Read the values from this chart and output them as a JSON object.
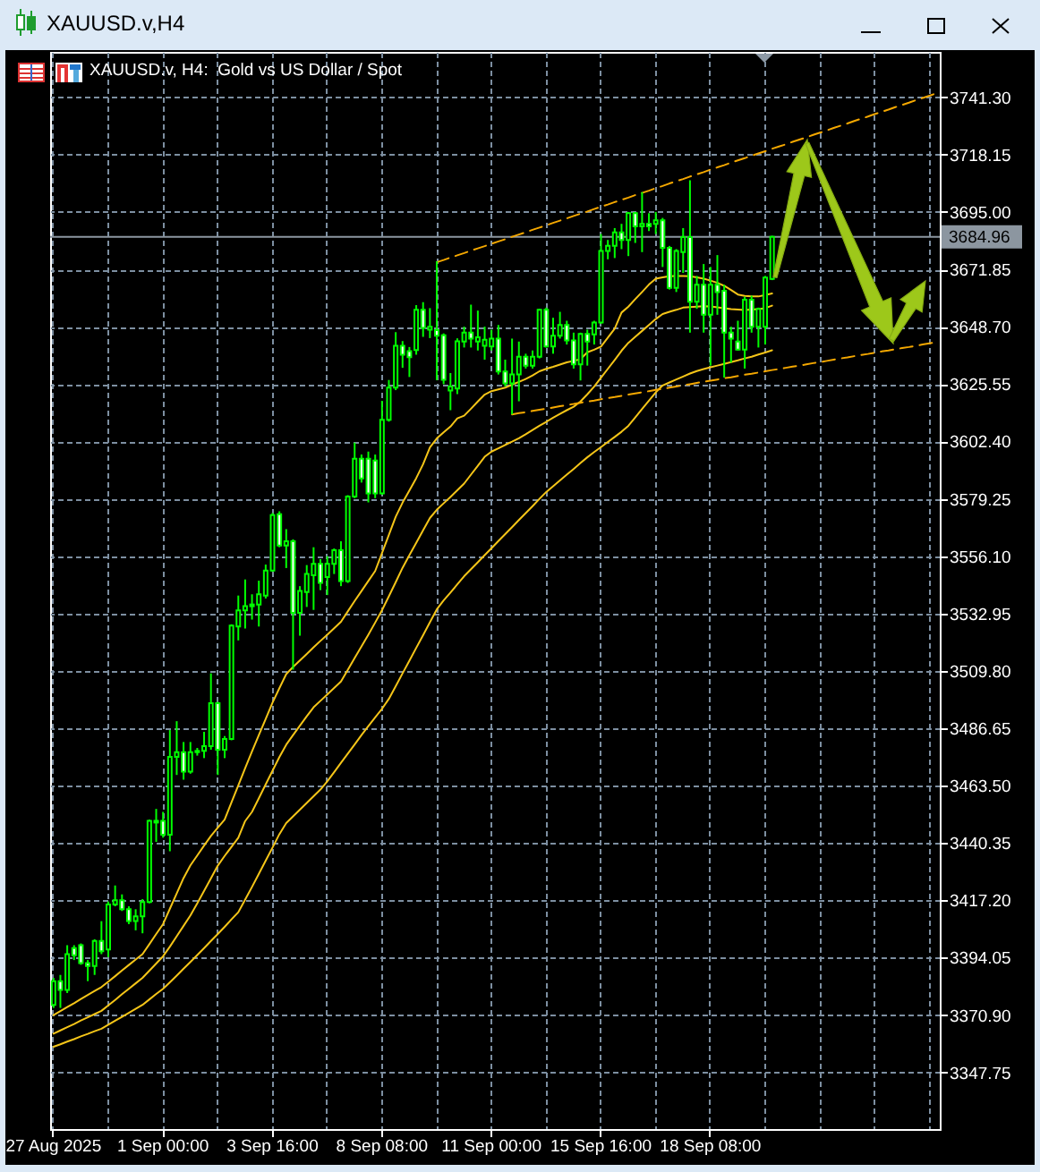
{
  "chart_data": {
    "type": "candlestick",
    "title": "XAUUSD.v,H4",
    "subtitle": "XAUUSD.v, H4:  Gold vs US Dollar / Spot",
    "color": "#00ff00",
    "categories": [
      "27 Aug 2025",
      null,
      null,
      null,
      null,
      null,
      null,
      null,
      null,
      null,
      null,
      null,
      null,
      null,
      null,
      null,
      "1 Sep 00:00",
      null,
      null,
      null,
      null,
      null,
      null,
      null,
      null,
      null,
      null,
      null,
      null,
      null,
      null,
      null,
      "3 Sep 16:00",
      null,
      null,
      null,
      null,
      null,
      null,
      null,
      null,
      null,
      null,
      null,
      null,
      null,
      null,
      null,
      "8 Sep 08:00",
      null,
      null,
      null,
      null,
      null,
      null,
      null,
      null,
      null,
      null,
      null,
      null,
      null,
      null,
      null,
      "11 Sep 00:00",
      null,
      null,
      null,
      null,
      null,
      null,
      null,
      null,
      null,
      null,
      null,
      null,
      null,
      null,
      null,
      "15 Sep 16:00",
      null,
      null,
      null,
      null,
      null,
      null,
      null,
      null,
      null,
      null,
      null,
      null,
      null,
      null,
      null,
      "18 Sep 08:00",
      null,
      null,
      null,
      null,
      null,
      null,
      null,
      null,
      null,
      null,
      null,
      null,
      null,
      null,
      null,
      null,
      null,
      null,
      null,
      null,
      null,
      null,
      null,
      null,
      null,
      null,
      null,
      null,
      null,
      null,
      null,
      null,
      null
    ],
    "ohlc": [
      [
        3375.0,
        3385.9,
        3373.8,
        3384.6
      ],
      [
        3384.6,
        3387.1,
        3373.8,
        3381.0
      ],
      [
        3381.0,
        3399.1,
        3379.8,
        3395.5
      ],
      [
        3397.9,
        3399.1,
        3393.1,
        3395.0
      ],
      [
        3399.1,
        3399.8,
        3391.2,
        3391.9
      ],
      [
        3391.9,
        3393.1,
        3384.6,
        3390.7
      ],
      [
        3390.7,
        3401.5,
        3387.1,
        3400.8
      ],
      [
        3400.8,
        3408.8,
        3395.5,
        3396.7
      ],
      [
        3397.4,
        3416.7,
        3394.3,
        3415.5
      ],
      [
        3415.5,
        3423.2,
        3414.8,
        3417.2
      ],
      [
        3417.2,
        3419.6,
        3412.9,
        3413.6
      ],
      [
        3413.6,
        3414.8,
        3407.6,
        3408.8
      ],
      [
        3408.8,
        3413.6,
        3405.1,
        3410.7
      ],
      [
        3410.7,
        3417.7,
        3403.9,
        3416.5
      ],
      [
        3416.5,
        3449.8,
        3416.0,
        3449.3
      ],
      [
        3449.3,
        3454.1,
        3440.8,
        3448.6
      ],
      [
        3449.3,
        3452.9,
        3442.5,
        3443.7
      ],
      [
        3443.7,
        3485.9,
        3437.0,
        3475.1
      ],
      [
        3475.1,
        3489.5,
        3467.8,
        3477.0
      ],
      [
        3477.0,
        3481.1,
        3465.9,
        3469.1
      ],
      [
        3469.1,
        3481.1,
        3468.3,
        3477.0
      ],
      [
        3477.0,
        3478.7,
        3475.6,
        3477.5
      ],
      [
        3477.5,
        3485.2,
        3474.6,
        3479.4
      ],
      [
        3479.4,
        3508.8,
        3478.0,
        3496.8
      ],
      [
        3496.8,
        3497.3,
        3467.8,
        3478.0
      ],
      [
        3478.0,
        3483.5,
        3474.6,
        3482.3
      ],
      [
        3482.3,
        3528.6,
        3481.8,
        3528.1
      ],
      [
        3527.7,
        3540.2,
        3522.1,
        3534.2
      ],
      [
        3534.2,
        3546.7,
        3526.9,
        3535.9
      ],
      [
        3535.9,
        3540.7,
        3530.5,
        3536.6
      ],
      [
        3536.6,
        3546.2,
        3527.7,
        3540.7
      ],
      [
        3540.2,
        3552.7,
        3539.0,
        3550.3
      ],
      [
        3550.3,
        3573.5,
        3549.8,
        3572.7
      ],
      [
        3573.0,
        3574.2,
        3559.7,
        3560.4
      ],
      [
        3560.4,
        3567.0,
        3551.3,
        3562.1
      ],
      [
        3562.1,
        3562.9,
        3510.3,
        3533.2
      ],
      [
        3533.2,
        3544.0,
        3524.0,
        3542.1
      ],
      [
        3541.6,
        3552.5,
        3535.6,
        3548.9
      ],
      [
        3548.4,
        3559.7,
        3534.4,
        3553.0
      ],
      [
        3553.0,
        3554.9,
        3542.4,
        3545.3
      ],
      [
        3547.7,
        3556.1,
        3540.4,
        3553.0
      ],
      [
        3553.0,
        3559.2,
        3548.9,
        3558.5
      ],
      [
        3558.5,
        3562.1,
        3544.0,
        3546.0
      ],
      [
        3546.0,
        3580.7,
        3545.3,
        3580.2
      ],
      [
        3580.2,
        3601.9,
        3579.5,
        3595.4
      ],
      [
        3595.4,
        3597.1,
        3585.8,
        3587.5
      ],
      [
        3595.4,
        3598.3,
        3577.8,
        3581.4
      ],
      [
        3594.7,
        3597.1,
        3579.5,
        3581.4
      ],
      [
        3581.4,
        3618.8,
        3580.9,
        3611.1
      ],
      [
        3611.1,
        3627.2,
        3610.4,
        3624.1
      ],
      [
        3624.1,
        3646.5,
        3623.1,
        3641.0
      ],
      [
        3641.0,
        3642.9,
        3632.1,
        3637.4
      ],
      [
        3638.8,
        3640.5,
        3628.4,
        3636.4
      ],
      [
        3639.3,
        3657.4,
        3637.4,
        3655.5
      ],
      [
        3655.5,
        3658.6,
        3644.6,
        3648.2
      ],
      [
        3647.5,
        3656.2,
        3644.1,
        3648.7
      ],
      [
        3647.3,
        3675.1,
        3627.1,
        3645.1
      ],
      [
        3645.2,
        3646.0,
        3625.5,
        3627.3
      ],
      [
        3622.9,
        3630.0,
        3615.0,
        3624.6
      ],
      [
        3623.8,
        3644.0,
        3621.5,
        3642.8
      ],
      [
        3642.7,
        3648.7,
        3640.3,
        3646.3
      ],
      [
        3646.3,
        3657.6,
        3640.3,
        3643.9
      ],
      [
        3642.7,
        3655.2,
        3639.1,
        3644.4
      ],
      [
        3641.0,
        3648.7,
        3635.4,
        3643.4
      ],
      [
        3640.7,
        3647.5,
        3639.1,
        3643.9
      ],
      [
        3643.9,
        3649.4,
        3629.4,
        3630.6
      ],
      [
        3630.6,
        3635.4,
        3624.6,
        3625.8
      ],
      [
        3625.8,
        3643.9,
        3613.3,
        3629.4
      ],
      [
        3629.4,
        3642.7,
        3618.6,
        3636.6
      ],
      [
        3636.6,
        3637.8,
        3631.8,
        3633.0
      ],
      [
        3633.0,
        3639.1,
        3631.8,
        3636.6
      ],
      [
        3636.6,
        3655.9,
        3635.9,
        3655.5
      ],
      [
        3655.5,
        3656.4,
        3640.3,
        3640.7
      ],
      [
        3640.7,
        3652.3,
        3637.8,
        3645.1
      ],
      [
        3645.1,
        3654.7,
        3643.9,
        3649.4
      ],
      [
        3649.4,
        3651.1,
        3641.5,
        3643.2
      ],
      [
        3643.2,
        3646.3,
        3631.8,
        3633.5
      ],
      [
        3633.5,
        3646.3,
        3627.0,
        3645.8
      ],
      [
        3645.8,
        3647.5,
        3633.0,
        3642.7
      ],
      [
        3645.6,
        3651.1,
        3641.5,
        3650.4
      ],
      [
        3650.4,
        3686.1,
        3649.9,
        3679.3
      ],
      [
        3679.3,
        3683.7,
        3675.9,
        3681.3
      ],
      [
        3681.3,
        3688.5,
        3676.4,
        3686.8
      ],
      [
        3686.8,
        3690.2,
        3680.0,
        3683.7
      ],
      [
        3683.7,
        3695.0,
        3677.2,
        3694.5
      ],
      [
        3694.5,
        3695.0,
        3682.5,
        3689.2
      ],
      [
        3689.2,
        3703.0,
        3678.8,
        3690.2
      ],
      [
        3690.2,
        3694.5,
        3687.3,
        3689.2
      ],
      [
        3690.2,
        3695.0,
        3686.1,
        3691.6
      ],
      [
        3691.6,
        3692.6,
        3672.8,
        3680.5
      ],
      [
        3680.5,
        3681.3,
        3663.7,
        3664.4
      ],
      [
        3664.4,
        3680.0,
        3662.7,
        3679.3
      ],
      [
        3678.8,
        3688.5,
        3670.4,
        3684.9
      ],
      [
        3684.9,
        3707.8,
        3646.3,
        3658.8
      ],
      [
        3658.8,
        3669.2,
        3655.9,
        3665.6
      ],
      [
        3665.6,
        3674.0,
        3646.3,
        3653.5
      ],
      [
        3653.5,
        3672.8,
        3633.0,
        3665.6
      ],
      [
        3665.6,
        3677.6,
        3653.5,
        3662.7
      ],
      [
        3663.2,
        3665.6,
        3628.2,
        3646.3
      ],
      [
        3646.3,
        3648.7,
        3634.2,
        3643.9
      ],
      [
        3642.7,
        3651.1,
        3639.1,
        3639.5
      ],
      [
        3639.5,
        3660.8,
        3631.8,
        3659.6
      ],
      [
        3659.6,
        3661.2,
        3646.3,
        3648.7
      ],
      [
        3648.7,
        3656.4,
        3640.3,
        3655.9
      ],
      [
        3648.7,
        3669.2,
        3641.5,
        3668.5
      ],
      [
        3668.0,
        3685.4,
        3667.5,
        3684.96
      ],
      null,
      null,
      null,
      null,
      null,
      null,
      null,
      null,
      null,
      null,
      null,
      null,
      null,
      null,
      null,
      null,
      null,
      null,
      null,
      null,
      null,
      null,
      null,
      null
    ],
    "series": [
      {
        "type": "line",
        "color": "#f5c518",
        "values": [
          3370.9,
          3372.5,
          3374.1,
          3375.7,
          3377.4,
          3379.0,
          3380.6,
          3382.2,
          3384.4,
          3386.6,
          3388.9,
          3391.1,
          3393.3,
          3395.5,
          3399.5,
          3403.6,
          3407.6,
          3413.8,
          3420.0,
          3426.2,
          3431.3,
          3435.3,
          3439.3,
          3443.2,
          3446.5,
          3449.8,
          3456.7,
          3463.6,
          3470.5,
          3477.3,
          3483.9,
          3490.4,
          3497.0,
          3502.8,
          3508.5,
          3511.4,
          3514.0,
          3516.6,
          3519.3,
          3521.9,
          3524.4,
          3527.0,
          3529.6,
          3533.8,
          3538.0,
          3542.0,
          3546.1,
          3550.1,
          3557.4,
          3564.7,
          3572.0,
          3577.7,
          3582.6,
          3587.6,
          3593.2,
          3600.0,
          3603.6,
          3606.1,
          3608.4,
          3611.7,
          3612.8,
          3615.6,
          3618.5,
          3621.3,
          3622.7,
          3623.4,
          3624.1,
          3625.3,
          3626.4,
          3627.6,
          3629.0,
          3630.7,
          3631.7,
          3632.5,
          3633.4,
          3634.3,
          3634.9,
          3635.6,
          3638.4,
          3639.4,
          3640.7,
          3644.3,
          3647.9,
          3654.4,
          3656.8,
          3659.8,
          3662.7,
          3665.7,
          3668.1,
          3668.6,
          3669.1,
          3669.2,
          3669.2,
          3669.1,
          3668.6,
          3668.1,
          3667.3,
          3666.4,
          3665.2,
          3663.5,
          3661.7,
          3661.1,
          3660.9,
          3660.9,
          3661.5,
          3662.1,
          null,
          null,
          null,
          null,
          null,
          null,
          null,
          null,
          null,
          null,
          null,
          null,
          null,
          null,
          null,
          null,
          null,
          null,
          null,
          null,
          null,
          null,
          null,
          null
        ]
      },
      {
        "type": "line",
        "color": "#f5c518",
        "values": [
          3363.4,
          3364.7,
          3366.0,
          3367.3,
          3368.7,
          3370.0,
          3371.3,
          3372.6,
          3374.8,
          3377.0,
          3379.3,
          3381.5,
          3383.7,
          3385.9,
          3388.8,
          3391.7,
          3394.6,
          3398.5,
          3402.7,
          3406.9,
          3411.1,
          3416.0,
          3421.0,
          3426.1,
          3431.2,
          3435.1,
          3438.8,
          3442.5,
          3449.2,
          3452.9,
          3458.4,
          3464.0,
          3469.5,
          3475.0,
          3480.0,
          3483.9,
          3487.7,
          3491.5,
          3495.1,
          3497.7,
          3500.3,
          3502.9,
          3505.5,
          3510.2,
          3515.0,
          3519.7,
          3524.4,
          3529.3,
          3534.3,
          3539.9,
          3545.6,
          3551.4,
          3556.5,
          3561.5,
          3566.5,
          3571.5,
          3574.8,
          3577.4,
          3580.0,
          3582.7,
          3585.4,
          3589.0,
          3592.6,
          3596.2,
          3598.3,
          3599.6,
          3601.0,
          3602.3,
          3603.7,
          3605.3,
          3607.0,
          3608.7,
          3610.3,
          3612.0,
          3613.5,
          3615.0,
          3616.4,
          3618.5,
          3621.4,
          3624.5,
          3628.1,
          3631.7,
          3635.3,
          3639.0,
          3642.2,
          3644.6,
          3647.0,
          3649.4,
          3651.8,
          3653.8,
          3654.7,
          3655.5,
          3656.4,
          3656.6,
          3656.8,
          3657.0,
          3656.9,
          3656.5,
          3656.2,
          3655.8,
          3655.6,
          3655.4,
          3655.6,
          3655.8,
          3656.2,
          3657.2,
          null,
          null,
          null,
          null,
          null,
          null,
          null,
          null,
          null,
          null,
          null,
          null,
          null,
          null,
          null,
          null,
          null,
          null,
          null,
          null,
          null,
          null,
          null,
          null
        ]
      },
      {
        "type": "line",
        "color": "#f5c518",
        "values": [
          3358.1,
          3359.1,
          3360.2,
          3361.2,
          3362.3,
          3363.3,
          3364.4,
          3365.4,
          3367.0,
          3368.6,
          3370.2,
          3371.8,
          3373.4,
          3375.0,
          3377.2,
          3379.4,
          3381.5,
          3384.1,
          3386.8,
          3389.6,
          3392.3,
          3395.1,
          3397.9,
          3400.8,
          3403.6,
          3406.5,
          3409.5,
          3412.4,
          3417.5,
          3422.6,
          3427.9,
          3433.2,
          3438.5,
          3443.9,
          3448.4,
          3451.1,
          3453.8,
          3456.5,
          3459.2,
          3461.9,
          3465.2,
          3468.9,
          3472.7,
          3476.4,
          3480.1,
          3483.9,
          3487.5,
          3491.0,
          3494.5,
          3498.5,
          3503.6,
          3508.8,
          3513.9,
          3519.1,
          3524.2,
          3529.4,
          3534.6,
          3538.2,
          3541.4,
          3544.7,
          3548.0,
          3550.8,
          3553.6,
          3556.5,
          3559.3,
          3562.2,
          3565.0,
          3567.8,
          3570.7,
          3573.5,
          3576.3,
          3579.2,
          3582.0,
          3584.3,
          3586.7,
          3589.0,
          3591.3,
          3593.7,
          3596.0,
          3598.1,
          3600.1,
          3602.2,
          3604.2,
          3606.3,
          3608.7,
          3612.1,
          3615.5,
          3618.8,
          3622.2,
          3625.0,
          3626.2,
          3627.4,
          3628.6,
          3629.8,
          3630.8,
          3631.6,
          3632.3,
          3633.0,
          3633.7,
          3634.4,
          3635.1,
          3635.9,
          3636.6,
          3637.5,
          3638.3,
          3639.2,
          null,
          null,
          null,
          null,
          null,
          null,
          null,
          null,
          null,
          null,
          null,
          null,
          null,
          null,
          null,
          null,
          null,
          null,
          null,
          null,
          null,
          null,
          null,
          null
        ]
      },
      {
        "type": "line",
        "color": "#f5a800",
        "line_style": "dashed",
        "values": [
          null,
          null,
          null,
          null,
          null,
          null,
          null,
          null,
          null,
          null,
          null,
          null,
          null,
          null,
          null,
          null,
          null,
          null,
          null,
          null,
          null,
          null,
          null,
          null,
          null,
          null,
          null,
          null,
          null,
          null,
          null,
          null,
          null,
          null,
          null,
          null,
          null,
          null,
          null,
          null,
          null,
          null,
          null,
          null,
          null,
          null,
          null,
          null,
          null,
          null,
          null,
          null,
          null,
          null,
          null,
          null,
          3674.7,
          3675.6,
          3676.6,
          3677.5,
          3678.4,
          3679.4,
          3680.3,
          3681.2,
          3682.2,
          3683.1,
          3684.0,
          3685.0,
          3685.9,
          3686.8,
          3687.8,
          3688.7,
          3689.6,
          3690.6,
          3691.5,
          3692.4,
          3693.4,
          3694.3,
          3695.2,
          3696.2,
          3697.1,
          3698.0,
          3699.0,
          3699.9,
          3700.8,
          3701.8,
          3702.7,
          3703.6,
          3704.6,
          3705.5,
          3706.5,
          3707.4,
          3708.3,
          3709.3,
          3710.2,
          3711.1,
          3712.1,
          3713.0,
          3713.9,
          3714.9,
          3715.8,
          3716.7,
          3717.7,
          3718.6,
          3719.5,
          3720.5,
          3721.4,
          3722.3,
          3723.3,
          3724.2,
          3725.1,
          3726.1,
          3727.0,
          3727.9,
          3728.9,
          3729.8,
          3730.7,
          3731.7,
          3732.6,
          3733.5,
          3734.5,
          3735.4,
          3736.3,
          3737.3,
          3738.2,
          3739.1,
          3740.1,
          3741.0,
          3741.9,
          3742.9
        ]
      },
      {
        "type": "line",
        "color": "#f5a800",
        "line_style": "dashed",
        "values": [
          null,
          null,
          null,
          null,
          null,
          null,
          null,
          null,
          null,
          null,
          null,
          null,
          null,
          null,
          null,
          null,
          null,
          null,
          null,
          null,
          null,
          null,
          null,
          null,
          null,
          null,
          null,
          null,
          null,
          null,
          null,
          null,
          null,
          null,
          null,
          null,
          null,
          null,
          null,
          null,
          null,
          null,
          null,
          null,
          null,
          null,
          null,
          null,
          null,
          null,
          null,
          null,
          null,
          null,
          null,
          null,
          null,
          null,
          null,
          null,
          null,
          null,
          null,
          null,
          null,
          null,
          null,
          3613.3,
          3613.8,
          3614.2,
          3614.7,
          3615.2,
          3615.6,
          3616.1,
          3616.6,
          3617.1,
          3617.5,
          3618.0,
          3618.5,
          3618.9,
          3619.4,
          3619.9,
          3620.3,
          3620.8,
          3621.3,
          3621.8,
          3622.2,
          3622.7,
          3623.2,
          3623.6,
          3624.1,
          3624.6,
          3625.0,
          3625.5,
          3626.0,
          3626.5,
          3626.9,
          3627.4,
          3627.9,
          3628.3,
          3628.8,
          3629.3,
          3629.7,
          3630.2,
          3630.7,
          3631.2,
          3631.6,
          3632.1,
          3632.6,
          3633.0,
          3633.5,
          3634.0,
          3634.4,
          3634.9,
          3635.4,
          3635.9,
          3636.3,
          3636.8,
          3637.3,
          3637.7,
          3638.2,
          3638.7,
          3639.1,
          3639.6,
          3640.1,
          3640.5,
          3641.0,
          3641.5,
          3642.0,
          3642.4
        ]
      }
    ],
    "ref_lines": [
      {
        "axis": "y",
        "value": 3684.96,
        "label": "3684.96",
        "color": "#8c96a0"
      }
    ],
    "ylim": [
      3324.9,
      3759.6
    ],
    "yticks": [
      {
        "value": 3347.75,
        "label": "3347.75"
      },
      {
        "value": 3370.9,
        "label": "3370.90"
      },
      {
        "value": 3394.05,
        "label": "3394.05"
      },
      {
        "value": 3417.2,
        "label": "3417.20"
      },
      {
        "value": 3440.35,
        "label": "3440.35"
      },
      {
        "value": 3463.5,
        "label": "3463.50"
      },
      {
        "value": 3486.65,
        "label": "3486.65"
      },
      {
        "value": 3509.8,
        "label": "3509.80"
      },
      {
        "value": 3532.95,
        "label": "3532.95"
      },
      {
        "value": 3556.1,
        "label": "3556.10"
      },
      {
        "value": 3579.25,
        "label": "3579.25"
      },
      {
        "value": 3602.4,
        "label": "3602.40"
      },
      {
        "value": 3625.55,
        "label": "3625.55"
      },
      {
        "value": 3648.7,
        "label": "3648.70"
      },
      {
        "value": 3671.85,
        "label": "3671.85"
      },
      {
        "value": 3695,
        "label": "3695.00"
      },
      {
        "value": 3718.15,
        "label": "3718.15"
      },
      {
        "value": 3741.3,
        "label": "3741.30"
      }
    ],
    "grid": true
  }
}
